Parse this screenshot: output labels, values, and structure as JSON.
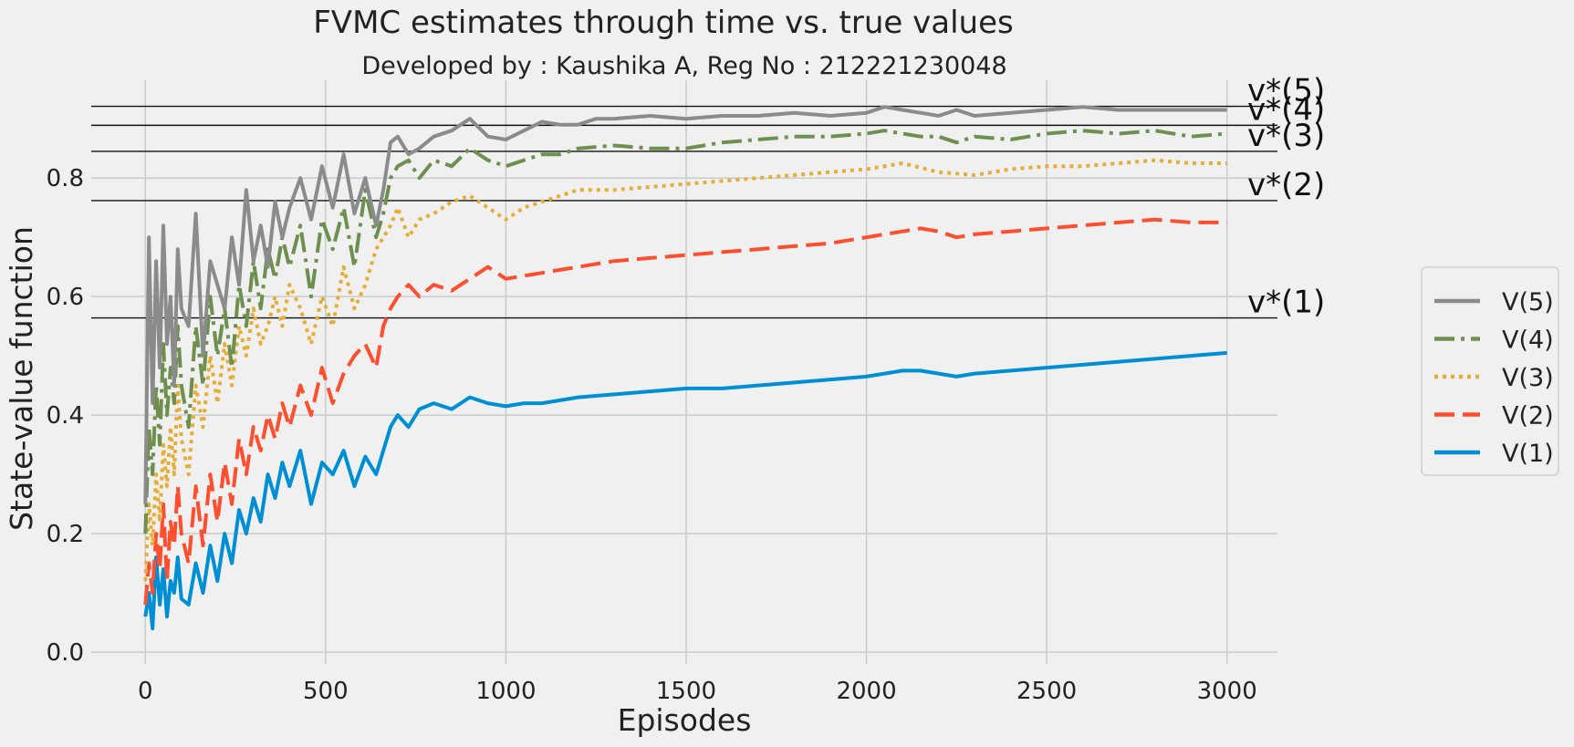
{
  "chart_data": {
    "type": "line",
    "title": "FVMC estimates through time vs. true values",
    "subtitle": "Developed by : Kaushika A, Reg No : 212221230048",
    "xlabel": "Episodes",
    "ylabel": "State-value function",
    "xlim": [
      -150,
      3140
    ],
    "ylim": [
      -0.02,
      0.965
    ],
    "xticks": [
      0,
      500,
      1000,
      1500,
      2000,
      2500,
      3000
    ],
    "yticks": [
      0.0,
      0.2,
      0.4,
      0.6,
      0.8
    ],
    "grid": true,
    "legend_position": "right",
    "true_values": [
      {
        "label": "v*(5)",
        "value": 0.921
      },
      {
        "label": "v*(4)",
        "value": 0.889
      },
      {
        "label": "v*(3)",
        "value": 0.845
      },
      {
        "label": "v*(2)",
        "value": 0.762
      },
      {
        "label": "v*(1)",
        "value": 0.564
      }
    ],
    "series": [
      {
        "name": "V(5)",
        "color": "#8b8b8b",
        "dash": "solid",
        "x": [
          0,
          10,
          20,
          30,
          40,
          50,
          60,
          70,
          80,
          90,
          100,
          120,
          140,
          160,
          180,
          200,
          220,
          240,
          260,
          280,
          300,
          320,
          340,
          360,
          380,
          400,
          430,
          460,
          490,
          520,
          550,
          580,
          610,
          640,
          660,
          680,
          700,
          730,
          760,
          800,
          850,
          900,
          950,
          1000,
          1050,
          1100,
          1150,
          1200,
          1250,
          1300,
          1400,
          1500,
          1600,
          1700,
          1800,
          1900,
          2000,
          2050,
          2100,
          2150,
          2200,
          2250,
          2300,
          2400,
          2500,
          2600,
          2700,
          2800,
          2900,
          3000
        ],
        "y": [
          0.25,
          0.7,
          0.42,
          0.66,
          0.48,
          0.72,
          0.52,
          0.6,
          0.45,
          0.68,
          0.58,
          0.55,
          0.74,
          0.5,
          0.66,
          0.62,
          0.58,
          0.7,
          0.62,
          0.78,
          0.66,
          0.72,
          0.65,
          0.76,
          0.7,
          0.75,
          0.8,
          0.73,
          0.82,
          0.75,
          0.84,
          0.74,
          0.8,
          0.72,
          0.78,
          0.86,
          0.87,
          0.84,
          0.85,
          0.87,
          0.88,
          0.9,
          0.87,
          0.865,
          0.88,
          0.895,
          0.89,
          0.89,
          0.9,
          0.9,
          0.905,
          0.9,
          0.905,
          0.905,
          0.91,
          0.905,
          0.91,
          0.92,
          0.915,
          0.91,
          0.905,
          0.915,
          0.905,
          0.91,
          0.915,
          0.92,
          0.915,
          0.915,
          0.915,
          0.915
        ]
      },
      {
        "name": "V(4)",
        "color": "#6d904f",
        "dash": "dashdot",
        "x": [
          0,
          10,
          20,
          30,
          40,
          50,
          60,
          70,
          80,
          90,
          100,
          120,
          140,
          160,
          180,
          200,
          220,
          240,
          260,
          280,
          300,
          320,
          340,
          360,
          380,
          400,
          430,
          460,
          490,
          520,
          550,
          580,
          610,
          640,
          660,
          680,
          700,
          730,
          760,
          800,
          850,
          900,
          950,
          1000,
          1050,
          1100,
          1150,
          1200,
          1300,
          1400,
          1500,
          1600,
          1700,
          1800,
          1900,
          2000,
          2050,
          2100,
          2150,
          2200,
          2250,
          2300,
          2400,
          2500,
          2600,
          2700,
          2800,
          2900,
          3000
        ],
        "y": [
          0.2,
          0.38,
          0.3,
          0.45,
          0.35,
          0.52,
          0.4,
          0.48,
          0.42,
          0.55,
          0.45,
          0.38,
          0.55,
          0.45,
          0.6,
          0.5,
          0.58,
          0.48,
          0.62,
          0.55,
          0.66,
          0.58,
          0.68,
          0.63,
          0.7,
          0.65,
          0.72,
          0.6,
          0.73,
          0.68,
          0.75,
          0.65,
          0.78,
          0.7,
          0.74,
          0.8,
          0.82,
          0.83,
          0.8,
          0.83,
          0.82,
          0.85,
          0.83,
          0.82,
          0.83,
          0.84,
          0.84,
          0.85,
          0.855,
          0.85,
          0.85,
          0.86,
          0.865,
          0.87,
          0.87,
          0.875,
          0.88,
          0.875,
          0.87,
          0.87,
          0.86,
          0.87,
          0.865,
          0.875,
          0.88,
          0.875,
          0.88,
          0.87,
          0.875
        ]
      },
      {
        "name": "V(3)",
        "color": "#e5ae38",
        "dash": "dotted",
        "x": [
          0,
          10,
          20,
          30,
          40,
          50,
          60,
          70,
          80,
          90,
          100,
          120,
          140,
          160,
          180,
          200,
          220,
          240,
          260,
          280,
          300,
          320,
          340,
          360,
          380,
          400,
          430,
          460,
          490,
          520,
          550,
          580,
          610,
          640,
          660,
          680,
          700,
          730,
          760,
          800,
          850,
          900,
          950,
          1000,
          1050,
          1100,
          1150,
          1200,
          1300,
          1400,
          1500,
          1600,
          1700,
          1800,
          1900,
          2000,
          2100,
          2200,
          2300,
          2400,
          2500,
          2600,
          2700,
          2800,
          2900,
          3000
        ],
        "y": [
          0.12,
          0.25,
          0.18,
          0.3,
          0.22,
          0.35,
          0.28,
          0.38,
          0.3,
          0.45,
          0.36,
          0.3,
          0.45,
          0.38,
          0.5,
          0.42,
          0.52,
          0.45,
          0.55,
          0.5,
          0.58,
          0.52,
          0.55,
          0.6,
          0.55,
          0.62,
          0.58,
          0.52,
          0.6,
          0.55,
          0.65,
          0.58,
          0.62,
          0.68,
          0.7,
          0.72,
          0.75,
          0.7,
          0.73,
          0.74,
          0.76,
          0.77,
          0.75,
          0.73,
          0.75,
          0.76,
          0.77,
          0.78,
          0.78,
          0.785,
          0.79,
          0.795,
          0.8,
          0.805,
          0.81,
          0.815,
          0.825,
          0.81,
          0.805,
          0.815,
          0.82,
          0.82,
          0.825,
          0.83,
          0.825,
          0.825
        ]
      },
      {
        "name": "V(2)",
        "color": "#fc4f30",
        "dash": "dashed",
        "x": [
          0,
          10,
          20,
          30,
          40,
          50,
          60,
          70,
          80,
          90,
          100,
          120,
          140,
          160,
          180,
          200,
          220,
          240,
          260,
          280,
          300,
          320,
          340,
          360,
          380,
          400,
          430,
          460,
          490,
          520,
          550,
          580,
          610,
          640,
          660,
          680,
          700,
          730,
          760,
          800,
          850,
          900,
          950,
          1000,
          1050,
          1100,
          1150,
          1200,
          1300,
          1400,
          1500,
          1600,
          1700,
          1800,
          1900,
          2000,
          2050,
          2100,
          2150,
          2200,
          2250,
          2300,
          2400,
          2500,
          2600,
          2700,
          2800,
          2900,
          3000
        ],
        "y": [
          0.08,
          0.15,
          0.1,
          0.2,
          0.14,
          0.25,
          0.12,
          0.22,
          0.18,
          0.28,
          0.2,
          0.15,
          0.28,
          0.18,
          0.3,
          0.22,
          0.32,
          0.25,
          0.36,
          0.3,
          0.38,
          0.34,
          0.4,
          0.36,
          0.42,
          0.38,
          0.45,
          0.4,
          0.48,
          0.42,
          0.47,
          0.5,
          0.52,
          0.48,
          0.55,
          0.58,
          0.6,
          0.62,
          0.6,
          0.62,
          0.61,
          0.63,
          0.65,
          0.63,
          0.635,
          0.64,
          0.645,
          0.65,
          0.66,
          0.665,
          0.67,
          0.675,
          0.68,
          0.685,
          0.69,
          0.7,
          0.705,
          0.71,
          0.715,
          0.71,
          0.7,
          0.705,
          0.71,
          0.715,
          0.72,
          0.725,
          0.73,
          0.725,
          0.725
        ]
      },
      {
        "name": "V(1)",
        "color": "#008fd5",
        "dash": "solid",
        "x": [
          0,
          10,
          20,
          30,
          40,
          50,
          60,
          70,
          80,
          90,
          100,
          120,
          140,
          160,
          180,
          200,
          220,
          240,
          260,
          280,
          300,
          320,
          340,
          360,
          380,
          400,
          430,
          460,
          490,
          520,
          550,
          580,
          610,
          640,
          660,
          680,
          700,
          730,
          760,
          800,
          850,
          900,
          950,
          1000,
          1050,
          1100,
          1150,
          1200,
          1300,
          1400,
          1500,
          1600,
          1700,
          1800,
          1900,
          2000,
          2050,
          2100,
          2150,
          2200,
          2250,
          2300,
          2400,
          2500,
          2600,
          2700,
          2800,
          2900,
          3000
        ],
        "y": [
          0.06,
          0.1,
          0.04,
          0.16,
          0.08,
          0.14,
          0.06,
          0.12,
          0.1,
          0.16,
          0.09,
          0.08,
          0.15,
          0.1,
          0.18,
          0.12,
          0.2,
          0.15,
          0.24,
          0.2,
          0.26,
          0.22,
          0.3,
          0.26,
          0.32,
          0.28,
          0.34,
          0.25,
          0.32,
          0.3,
          0.34,
          0.28,
          0.33,
          0.3,
          0.34,
          0.38,
          0.4,
          0.38,
          0.41,
          0.42,
          0.41,
          0.43,
          0.42,
          0.415,
          0.42,
          0.42,
          0.425,
          0.43,
          0.435,
          0.44,
          0.445,
          0.445,
          0.45,
          0.455,
          0.46,
          0.465,
          0.47,
          0.475,
          0.475,
          0.47,
          0.465,
          0.47,
          0.475,
          0.48,
          0.485,
          0.49,
          0.495,
          0.5,
          0.505
        ]
      }
    ]
  }
}
